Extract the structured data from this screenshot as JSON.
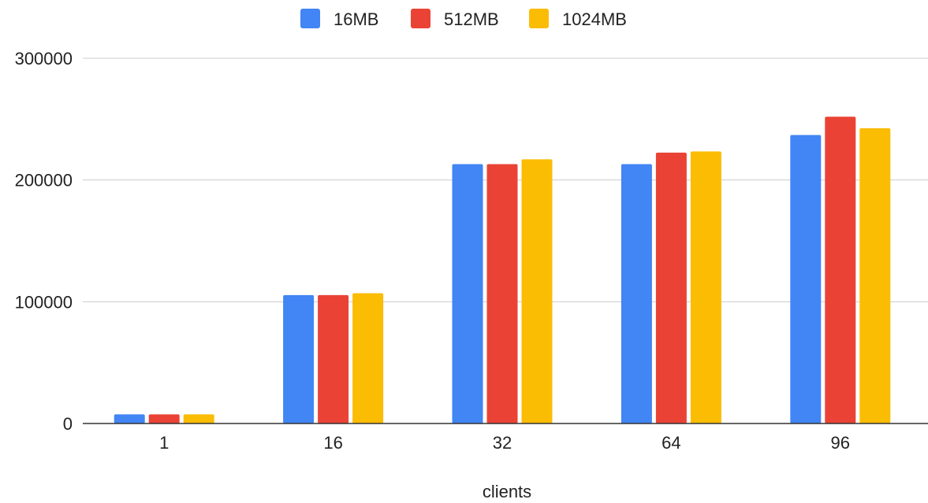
{
  "chart_data": {
    "type": "bar",
    "title": "",
    "xlabel": "clients",
    "ylabel": "",
    "categories": [
      "1",
      "16",
      "32",
      "64",
      "96"
    ],
    "series": [
      {
        "name": "16MB",
        "color": "#4285f4",
        "values": [
          7500,
          105500,
          213000,
          213000,
          237000
        ]
      },
      {
        "name": "512MB",
        "color": "#ea4335",
        "values": [
          7500,
          105500,
          213000,
          222500,
          252000
        ]
      },
      {
        "name": "1024MB",
        "color": "#fbbc04",
        "values": [
          7500,
          107000,
          217000,
          223500,
          242500
        ]
      }
    ],
    "ylim": [
      0,
      300000
    ],
    "yticks": [
      "0",
      "100000",
      "200000",
      "300000"
    ],
    "grid": true,
    "legend_position": "top"
  }
}
